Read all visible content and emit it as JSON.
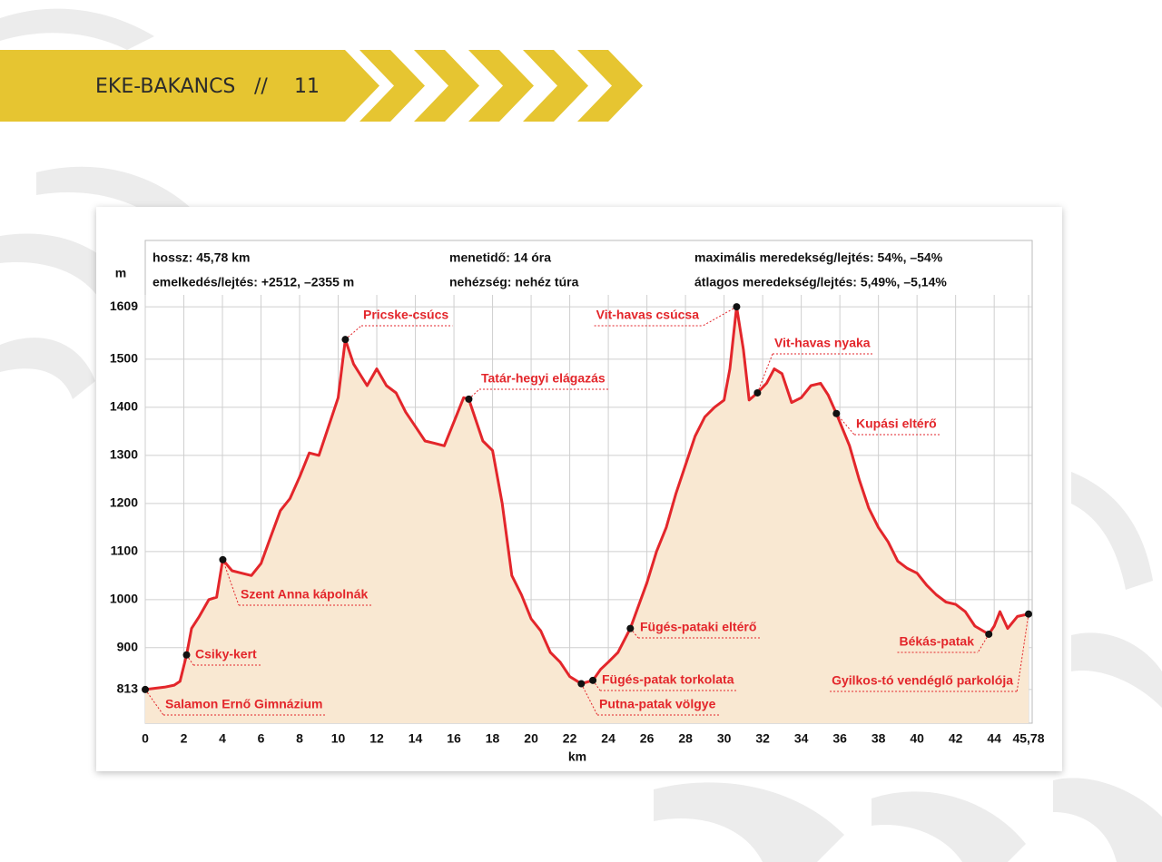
{
  "header": {
    "title": "EKE-BAKANCS",
    "separator": "//",
    "page": "11"
  },
  "chart_data": {
    "type": "line",
    "info": [
      "hossz: 45,78 km",
      "emelkedés/lejtés: +2512, –2355 m",
      "menetidő: 14 óra",
      "nehézség: nehéz túra",
      "maximális meredekség/lejtés: 54%, –54%",
      "átlagos meredekség/lejtés: 5,49%, –5,14%"
    ],
    "ylabel": "m",
    "xlabel": "km",
    "color": "#e3262b",
    "fill": "#f9e8d2",
    "grid": true,
    "xlim": [
      0,
      45.78
    ],
    "ylim": [
      743,
      1747
    ],
    "xticks": [
      0,
      2,
      4,
      6,
      8,
      10,
      12,
      14,
      16,
      18,
      20,
      22,
      24,
      26,
      28,
      30,
      32,
      34,
      36,
      38,
      40,
      42,
      44,
      {
        "value": 45.78,
        "label": "45,78"
      }
    ],
    "yticks": [
      813,
      900,
      1000,
      1100,
      1200,
      1300,
      1400,
      1500,
      1609
    ],
    "x": [
      0,
      1,
      1.5,
      1.8,
      2.14,
      2.4,
      2.8,
      3.3,
      3.7,
      4.02,
      4.5,
      5,
      5.5,
      6,
      6.5,
      7,
      7.5,
      8,
      8.5,
      9,
      9.5,
      10,
      10.37,
      10.8,
      11.5,
      12,
      12.5,
      13,
      13.5,
      14,
      14.5,
      15,
      15.5,
      16,
      16.5,
      16.77,
      17.5,
      18,
      18.5,
      19,
      19.5,
      20,
      20.5,
      21,
      21.5,
      22,
      22.6,
      23.2,
      23.6,
      24,
      24.5,
      25.14,
      25.5,
      26,
      26.5,
      27,
      27.5,
      28,
      28.5,
      29,
      29.5,
      30,
      30.3,
      30.65,
      31,
      31.3,
      31.73,
      32.2,
      32.6,
      33,
      33.5,
      34,
      34.5,
      35,
      35.4,
      35.82,
      36.5,
      37,
      37.5,
      38,
      38.5,
      39,
      39.5,
      40,
      40.5,
      41,
      41.5,
      42,
      42.5,
      43,
      43.72,
      44,
      44.3,
      44.7,
      45.2,
      45.78
    ],
    "values": [
      813,
      818,
      822,
      830,
      885,
      940,
      965,
      1000,
      1005,
      1083,
      1060,
      1055,
      1050,
      1075,
      1130,
      1185,
      1210,
      1255,
      1305,
      1300,
      1360,
      1420,
      1541,
      1490,
      1445,
      1480,
      1445,
      1430,
      1390,
      1360,
      1330,
      1325,
      1320,
      1370,
      1420,
      1417,
      1330,
      1310,
      1200,
      1050,
      1010,
      960,
      935,
      890,
      870,
      840,
      825,
      832,
      855,
      870,
      890,
      940,
      980,
      1035,
      1100,
      1150,
      1220,
      1280,
      1340,
      1380,
      1400,
      1415,
      1480,
      1609,
      1520,
      1415,
      1430,
      1450,
      1480,
      1470,
      1410,
      1420,
      1445,
      1450,
      1425,
      1387,
      1320,
      1250,
      1190,
      1150,
      1120,
      1080,
      1065,
      1055,
      1030,
      1010,
      995,
      990,
      975,
      945,
      928,
      945,
      975,
      940,
      965,
      970
    ],
    "waypoints": [
      {
        "name": "Salamon Ernő Gimnázium",
        "x": 0,
        "value": 813
      },
      {
        "name": "Csiky-kert",
        "x": 2.14,
        "value": 885
      },
      {
        "name": "Szent Anna kápolnák",
        "x": 4.02,
        "value": 1083
      },
      {
        "name": "Pricske-csúcs",
        "x": 10.37,
        "value": 1541
      },
      {
        "name": "Tatár-hegyi elágazás",
        "x": 16.77,
        "value": 1417
      },
      {
        "name": "Fügés-pataki eltérő",
        "x": 25.14,
        "value": 940
      },
      {
        "name": "Fügés-patak torkolata",
        "x": 23.2,
        "value": 832
      },
      {
        "name": "Putna-patak völgye",
        "x": 22.6,
        "value": 825
      },
      {
        "name": "Vit-havas csúcsa",
        "x": 30.65,
        "value": 1609
      },
      {
        "name": "Vit-havas nyaka",
        "x": 31.73,
        "value": 1430
      },
      {
        "name": "Kupási eltérő",
        "x": 35.82,
        "value": 1387
      },
      {
        "name": "Békás-patak",
        "x": 43.72,
        "value": 928
      },
      {
        "name": "Gyilkos-tó vendéglő parkolója",
        "x": 45.78,
        "value": 970
      }
    ]
  }
}
